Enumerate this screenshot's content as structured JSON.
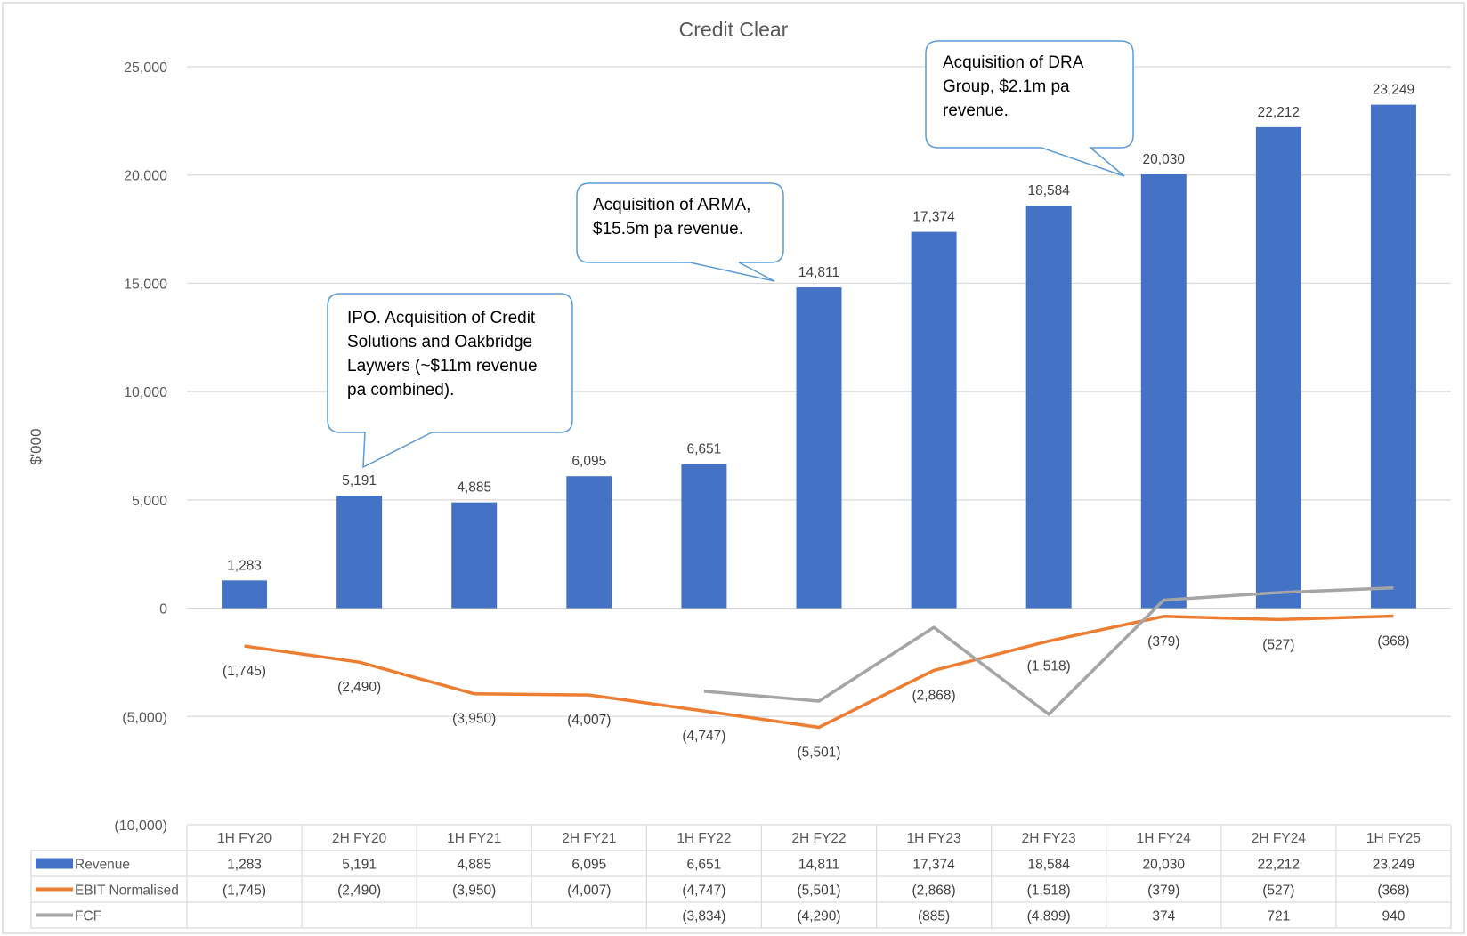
{
  "chart_data": {
    "type": "bar",
    "title": "Credit Clear",
    "ylabel": "$'000",
    "xlabel": "",
    "ylim": [
      -10000,
      25000
    ],
    "yticks": [
      25000,
      20000,
      15000,
      10000,
      5000,
      0,
      -5000,
      -10000
    ],
    "ytick_labels": [
      "25,000",
      "20,000",
      "15,000",
      "10,000",
      "5,000",
      "0",
      "(5,000)",
      "(10,000)"
    ],
    "grid": true,
    "categories": [
      "1H FY20",
      "2H FY20",
      "1H FY21",
      "2H FY21",
      "1H FY22",
      "2H FY22",
      "1H FY23",
      "2H FY23",
      "1H FY24",
      "2H FY24",
      "1H FY25"
    ],
    "series": [
      {
        "name": "Revenue",
        "type": "bar",
        "color": "#4472C4",
        "values": [
          1283,
          5191,
          4885,
          6095,
          6651,
          14811,
          17374,
          18584,
          20030,
          22212,
          23249
        ],
        "labels": [
          "1,283",
          "5,191",
          "4,885",
          "6,095",
          "6,651",
          "14,811",
          "17,374",
          "18,584",
          "20,030",
          "22,212",
          "23,249"
        ]
      },
      {
        "name": "EBIT Normalised",
        "type": "line",
        "color": "#ED7D31",
        "values": [
          -1745,
          -2490,
          -3950,
          -4007,
          -4747,
          -5501,
          -2868,
          -1518,
          -379,
          -527,
          -368
        ],
        "labels": [
          "(1,745)",
          "(2,490)",
          "(3,950)",
          "(4,007)",
          "(4,747)",
          "(5,501)",
          "(2,868)",
          "(1,518)",
          "(379)",
          "(527)",
          "(368)"
        ]
      },
      {
        "name": "FCF",
        "type": "line",
        "color": "#A5A5A5",
        "values": [
          null,
          null,
          null,
          null,
          -3834,
          -4290,
          -885,
          -4899,
          374,
          721,
          940
        ],
        "labels": [
          "",
          "",
          "",
          "",
          "(3,834)",
          "(4,290)",
          "(885)",
          "(4,899)",
          "374",
          "721",
          "940"
        ]
      }
    ],
    "annotations": [
      {
        "text": "IPO. Acquisition of Credit\nSolutions and Oakbridge\nLaywers (~$11m revenue\npa combined).",
        "points_to": "2H FY20"
      },
      {
        "text": "Acquisition of ARMA,\n$15.5m pa revenue.",
        "points_to": "2H FY22"
      },
      {
        "text": "Acquisition of DRA\nGroup, $2.1m pa\nrevenue.",
        "points_to": "1H FY24"
      }
    ],
    "data_table": true
  }
}
